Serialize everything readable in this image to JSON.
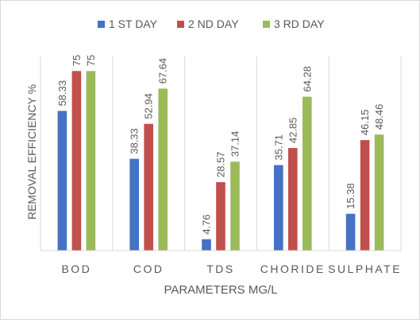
{
  "chart_data": {
    "type": "bar",
    "title": "",
    "xlabel": "PARAMETERS MG/L",
    "ylabel": "REMOVAL EFFICIENCY %",
    "categories": [
      "BOD",
      "COD",
      "TDS",
      "CHORIDE",
      "SULPHATE"
    ],
    "series": [
      {
        "name": "1 ST DAY",
        "values": [
          58.33,
          38.33,
          4.76,
          35.71,
          15.38
        ],
        "color": "#4472c4"
      },
      {
        "name": "2 ND DAY",
        "values": [
          75,
          52.94,
          28.57,
          42.85,
          46.15
        ],
        "color": "#c0504d"
      },
      {
        "name": "3 RD DAY",
        "values": [
          75,
          67.64,
          37.14,
          64.28,
          48.46
        ],
        "color": "#9bbb59"
      }
    ],
    "ylim": [
      0,
      80
    ],
    "grid": false,
    "category_separators": true,
    "legend_position": "top",
    "data_labels": "vertical, above bars"
  }
}
